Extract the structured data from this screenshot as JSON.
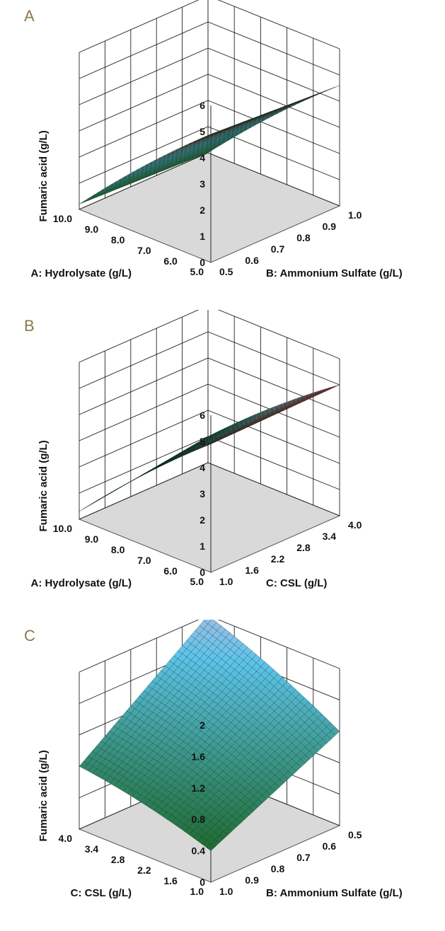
{
  "chart_data": [
    {
      "panel": "A",
      "type": "surface",
      "xlabel": "A: Hydrolysate (g/L)",
      "ylabel": "B: Ammonium Sulfate (g/L)",
      "zlabel": "Fumaric  acid (g/L)",
      "x_ticks": [
        "5.0",
        "6.0",
        "7.0",
        "8.0",
        "9.0",
        "10.0"
      ],
      "y_ticks": [
        "0.5",
        "0.6",
        "0.7",
        "0.8",
        "0.9",
        "1.0"
      ],
      "z_ticks": [
        "0",
        "1",
        "2",
        "3",
        "4",
        "5",
        "6"
      ],
      "xlim": [
        5.0,
        10.0
      ],
      "ylim": [
        0.5,
        1.0
      ],
      "zlim": [
        0,
        6
      ],
      "grid": true,
      "corner_values": [
        {
          "x": 5.0,
          "y": 0.5,
          "z": 4.9
        },
        {
          "x": 5.0,
          "y": 1.0,
          "z": 4.6
        },
        {
          "x": 10.0,
          "y": 0.5,
          "z": 0.2
        },
        {
          "x": 10.0,
          "y": 1.0,
          "z": 0.0
        }
      ]
    },
    {
      "panel": "B",
      "type": "surface",
      "xlabel": "A: Hydrolysate (g/L)",
      "ylabel": "C: CSL (g/L)",
      "zlabel": "Fumaric  acid (g/L)",
      "x_ticks": [
        "5.0",
        "6.0",
        "7.0",
        "8.0",
        "9.0",
        "10.0"
      ],
      "y_ticks": [
        "1.0",
        "1.6",
        "2.2",
        "2.8",
        "3.4",
        "4.0"
      ],
      "z_ticks": [
        "0",
        "1",
        "2",
        "3",
        "4",
        "5",
        "6"
      ],
      "xlim": [
        5.0,
        10.0
      ],
      "ylim": [
        1.0,
        4.0
      ],
      "zlim": [
        0,
        6
      ],
      "grid": true,
      "corner_values": [
        {
          "x": 5.0,
          "y": 1.0,
          "z": 4.9
        },
        {
          "x": 5.0,
          "y": 4.0,
          "z": 5.0
        },
        {
          "x": 10.0,
          "y": 1.0,
          "z": 0.3
        },
        {
          "x": 10.0,
          "y": 4.0,
          "z": 1.0
        }
      ]
    },
    {
      "panel": "C",
      "type": "surface",
      "xlabel": "C: CSL (g/L)",
      "ylabel": "B: Ammonium Sulfate (g/L)",
      "zlabel": "Fumaric  acid (g/L)",
      "x_ticks": [
        "1.0",
        "1.6",
        "2.2",
        "2.8",
        "3.4",
        "4.0"
      ],
      "y_ticks": [
        "1.0",
        "0.9",
        "0.8",
        "0.7",
        "0.6",
        "0.5"
      ],
      "z_ticks": [
        "0",
        "0.4",
        "0.8",
        "1.2",
        "1.6",
        "2"
      ],
      "xlim": [
        1.0,
        4.0
      ],
      "ylim": [
        1.0,
        0.5
      ],
      "zlim": [
        0,
        2
      ],
      "grid": true,
      "corner_values": [
        {
          "x": 1.0,
          "y": 1.0,
          "z": 0.4
        },
        {
          "x": 1.0,
          "y": 0.5,
          "z": 1.2
        },
        {
          "x": 4.0,
          "y": 1.0,
          "z": 0.8
        },
        {
          "x": 4.0,
          "y": 0.5,
          "z": 2.0
        }
      ]
    }
  ],
  "colors": {
    "low": "#1e6b30",
    "mid": "#5cc4ec",
    "high": "#b8132a",
    "floor": "#d9d9d9"
  }
}
